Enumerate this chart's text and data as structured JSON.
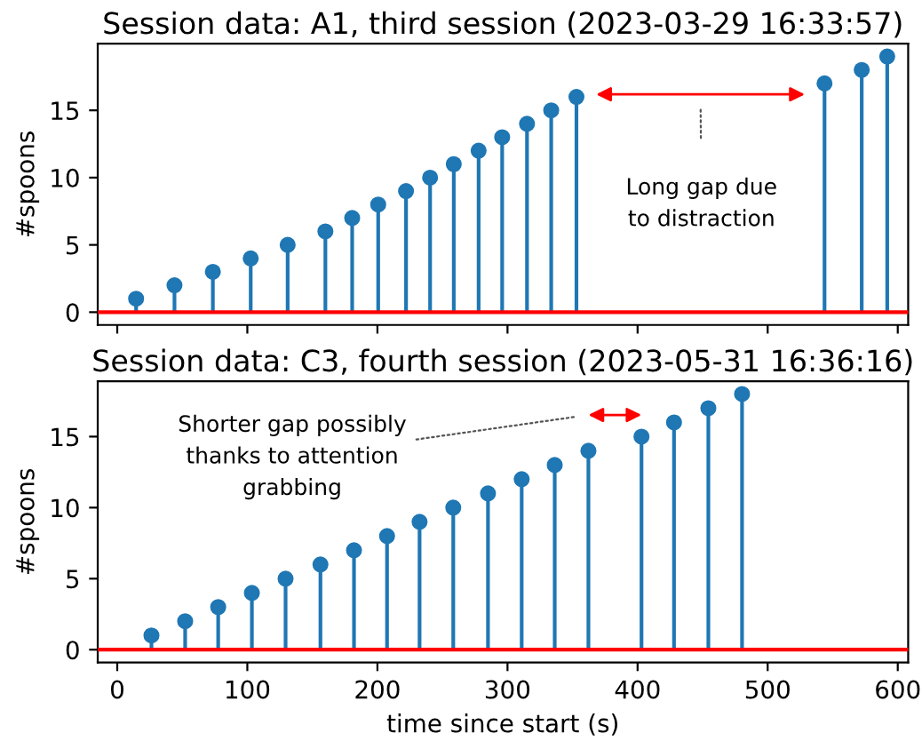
{
  "chart_data": [
    {
      "type": "lollipop",
      "title": "Session data: A1, third session (2023-03-29 16:33:57)",
      "ylabel": "#spoons",
      "x": [
        14.5,
        44,
        73.5,
        102.6,
        131,
        160,
        180.6,
        200.6,
        222,
        240.5,
        258.7,
        277.8,
        295.9,
        315,
        333.6,
        353,
        543.7,
        572.3,
        591.9
      ],
      "series": [
        {
          "color": "#1f77b4",
          "values": [
            1,
            2,
            3,
            4,
            5,
            6,
            7,
            8,
            9,
            10,
            11,
            12,
            13,
            14,
            15,
            16,
            17,
            18,
            19
          ]
        }
      ],
      "marker": "circle",
      "grid": false,
      "tick_labels": "y",
      "xlim": [
        -15,
        608
      ],
      "xticks": [
        0,
        100,
        200,
        300,
        400,
        500,
        600
      ],
      "ylim": [
        -0.95,
        19.95
      ],
      "yticks": [
        0,
        5,
        10,
        15
      ],
      "ref_lines": [
        {
          "axis": "y",
          "value": 0,
          "color": "#ff0000"
        }
      ],
      "annotations": [
        "Long gap due\nto distraction"
      ]
    },
    {
      "type": "lollipop",
      "title": "Session data: C3, fourth session (2023-05-31 16:36:16)",
      "ylabel": "#spoons",
      "xlabel": "time since start (s)",
      "x": [
        26.3,
        52.2,
        77.6,
        103.5,
        129.4,
        156.2,
        182,
        207.4,
        232.4,
        258.3,
        285,
        310.9,
        336.3,
        362.2,
        403,
        428,
        454.4,
        480.3
      ],
      "series": [
        {
          "color": "#1f77b4",
          "values": [
            1,
            2,
            3,
            4,
            5,
            6,
            7,
            8,
            9,
            10,
            11,
            12,
            13,
            14,
            15,
            16,
            17,
            18
          ]
        }
      ],
      "marker": "circle",
      "grid": false,
      "xlim": [
        -15,
        608
      ],
      "xticks": [
        0,
        100,
        200,
        300,
        400,
        500,
        600
      ],
      "ylim": [
        -0.9,
        18.9
      ],
      "yticks": [
        0,
        5,
        10,
        15
      ],
      "ref_lines": [
        {
          "axis": "y",
          "value": 0,
          "color": "#ff0000"
        }
      ],
      "annotations": [
        "Shorter gap possibly\nthanks to attention\ngrabbing"
      ]
    }
  ]
}
